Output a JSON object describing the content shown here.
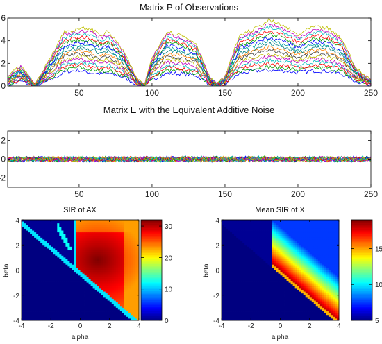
{
  "figure": {
    "colors": {
      "series": [
        "#0000ff",
        "#00a000",
        "#ff0000",
        "#00bfbf",
        "#bf00bf",
        "#bfbf00",
        "#404040",
        "#ff8000",
        "#008080",
        "#00a0a0"
      ],
      "axis": "#000000",
      "background": "#ffffff"
    }
  },
  "chart_data": [
    {
      "id": "observations",
      "type": "line",
      "title": "Matrix P of Observations",
      "xlabel": "",
      "ylabel": "",
      "xlim": [
        1,
        250
      ],
      "ylim": [
        0,
        6
      ],
      "xticks": [
        50,
        100,
        150,
        200,
        250
      ],
      "yticks": [
        0,
        2,
        4,
        6
      ],
      "xtick_labels": [
        "50",
        "100",
        "150",
        "200",
        "250"
      ],
      "ytick_labels": [
        "0",
        "2",
        "4",
        "6"
      ],
      "grid": false,
      "series_count": 16,
      "x": [
        1,
        10,
        20,
        30,
        40,
        50,
        55,
        60,
        65,
        70,
        80,
        90,
        95,
        100,
        110,
        120,
        130,
        140,
        145,
        150,
        160,
        170,
        180,
        190,
        200,
        210,
        220,
        230,
        240,
        250
      ],
      "envelope_max": [
        0.8,
        1.8,
        0.1,
        2.5,
        4.8,
        5.0,
        5.1,
        4.9,
        4.5,
        4.8,
        3.2,
        0.5,
        0.2,
        2.5,
        4.8,
        4.5,
        3.8,
        0.6,
        0.2,
        0.8,
        4.5,
        5.0,
        5.8,
        5.3,
        4.5,
        5.2,
        5.1,
        4.2,
        1.5,
        0.5
      ],
      "envelope_min": [
        0.0,
        0.3,
        0.0,
        0.3,
        0.9,
        1.1,
        0.9,
        0.8,
        0.8,
        0.8,
        0.6,
        0.1,
        0.0,
        0.4,
        0.8,
        0.8,
        0.7,
        0.1,
        0.0,
        0.1,
        0.8,
        1.0,
        1.0,
        1.0,
        0.9,
        1.0,
        1.0,
        0.8,
        0.3,
        0.1
      ]
    },
    {
      "id": "noise",
      "type": "line",
      "title": "Matrix E with the Equivalent Additive Noise",
      "xlabel": "",
      "ylabel": "",
      "xlim": [
        1,
        250
      ],
      "ylim": [
        -3,
        3
      ],
      "xticks": [
        50,
        100,
        150,
        200,
        250
      ],
      "yticks": [
        -2,
        0,
        2
      ],
      "xtick_labels": [
        "50",
        "100",
        "150",
        "200",
        "250"
      ],
      "ytick_labels": [
        "-2",
        "0",
        "2"
      ],
      "grid": false,
      "series_count": 16,
      "noise_amplitude": 0.35
    },
    {
      "id": "sir_ax",
      "type": "heatmap",
      "title": "SIR of AX",
      "xlabel": "alpha",
      "ylabel": "beta",
      "xlim": [
        -4,
        4
      ],
      "ylim": [
        -4,
        4
      ],
      "xticks": [
        -4,
        -2,
        0,
        2,
        4
      ],
      "yticks": [
        -4,
        -2,
        0,
        2,
        4
      ],
      "xtick_labels": [
        "-4",
        "-2",
        "0",
        "2",
        "4"
      ],
      "ytick_labels": [
        "-4",
        "-2",
        "0",
        "2",
        "4"
      ],
      "colorbar": {
        "range": [
          0,
          32
        ],
        "ticks": [
          0,
          10,
          20,
          30
        ],
        "tick_labels": [
          "0",
          "10",
          "20",
          "30"
        ]
      }
    },
    {
      "id": "mean_sir_x",
      "type": "heatmap",
      "title": "Mean SIR of X",
      "xlabel": "alpha",
      "ylabel": "beta",
      "xlim": [
        -4,
        4
      ],
      "ylim": [
        -4,
        4
      ],
      "xticks": [
        -4,
        -2,
        0,
        2,
        4
      ],
      "yticks": [
        -4,
        -2,
        0,
        2,
        4
      ],
      "xtick_labels": [
        "-4",
        "-2",
        "0",
        "2",
        "4"
      ],
      "ytick_labels": [
        "-4",
        "-2",
        "0",
        "2",
        "4"
      ],
      "colorbar": {
        "range": [
          5,
          19
        ],
        "ticks": [
          5,
          10,
          15
        ],
        "tick_labels": [
          "5",
          "10",
          "15"
        ]
      }
    }
  ]
}
